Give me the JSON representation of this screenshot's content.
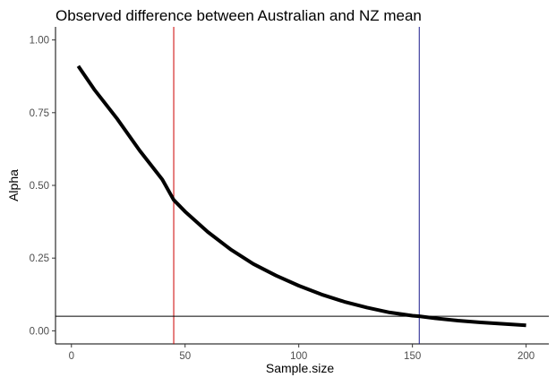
{
  "chart_data": {
    "type": "line",
    "title": "Observed difference between Australian and NZ mean",
    "xlabel": "Sample.size",
    "ylabel": "Alpha",
    "xlim": [
      -7,
      210
    ],
    "ylim": [
      -0.045,
      1.045
    ],
    "x_ticks": [
      0,
      50,
      100,
      150,
      200
    ],
    "x_tick_labels": [
      "0",
      "50",
      "100",
      "150",
      "200"
    ],
    "y_ticks": [
      0,
      0.25,
      0.5,
      0.75,
      1.0
    ],
    "y_tick_labels": [
      "0.00",
      "0.25",
      "0.50",
      "0.75",
      "1.00"
    ],
    "grid": false,
    "series": [
      {
        "color": "#000000",
        "x": [
          3,
          10,
          20,
          30,
          40,
          45,
          50,
          60,
          70,
          80,
          90,
          100,
          110,
          120,
          130,
          140,
          150,
          153,
          160,
          170,
          180,
          190,
          200
        ],
        "values": [
          0.91,
          0.83,
          0.73,
          0.62,
          0.52,
          0.45,
          0.41,
          0.34,
          0.28,
          0.23,
          0.19,
          0.155,
          0.125,
          0.1,
          0.08,
          0.063,
          0.052,
          0.05,
          0.043,
          0.035,
          0.029,
          0.024,
          0.019
        ]
      }
    ],
    "hlines": [
      {
        "y": 0.05,
        "color": "#000000"
      }
    ],
    "vlines": [
      {
        "x": 45,
        "color": "#cc0000"
      },
      {
        "x": 153,
        "color": "#1a1a8c"
      }
    ]
  }
}
